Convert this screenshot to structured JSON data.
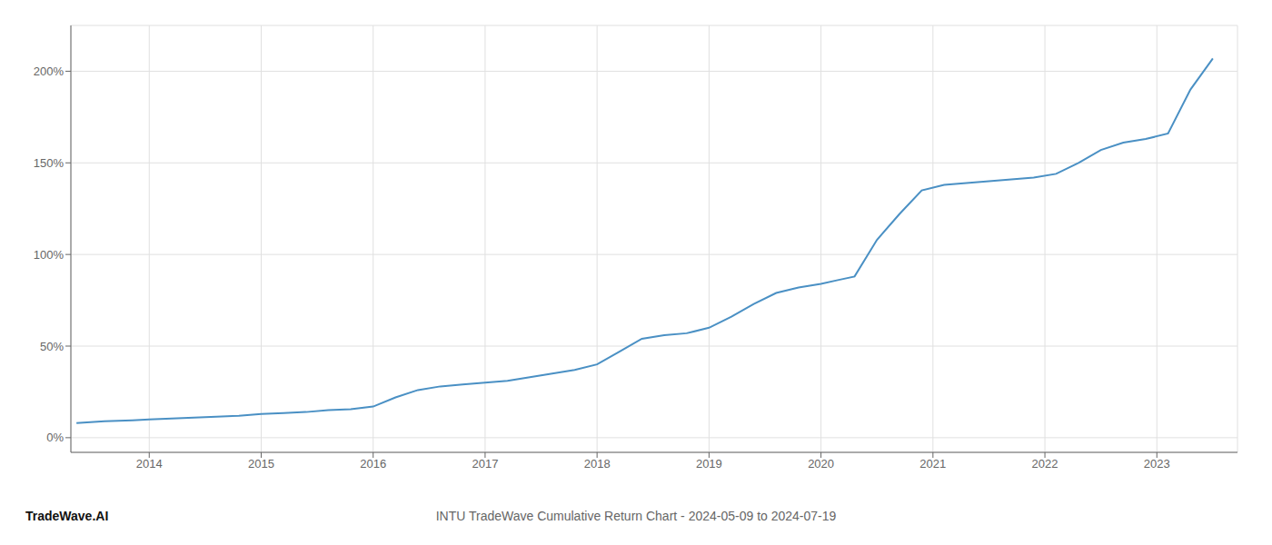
{
  "chart_data": {
    "type": "line",
    "title": "INTU TradeWave Cumulative Return Chart - 2024-05-09 to 2024-07-19",
    "annotations": [
      "TradeWave.AI"
    ],
    "x": [
      2013.35,
      2013.6,
      2013.85,
      2014.0,
      2014.2,
      2014.4,
      2014.6,
      2014.8,
      2015.0,
      2015.2,
      2015.4,
      2015.6,
      2015.8,
      2016.0,
      2016.2,
      2016.4,
      2016.6,
      2016.8,
      2017.0,
      2017.2,
      2017.4,
      2017.6,
      2017.8,
      2018.0,
      2018.2,
      2018.4,
      2018.6,
      2018.8,
      2019.0,
      2019.2,
      2019.4,
      2019.6,
      2019.8,
      2020.0,
      2020.15,
      2020.3,
      2020.5,
      2020.7,
      2020.9,
      2021.1,
      2021.3,
      2021.5,
      2021.7,
      2021.9,
      2022.1,
      2022.3,
      2022.5,
      2022.7,
      2022.9,
      2023.1,
      2023.3,
      2023.5
    ],
    "values": [
      8,
      9,
      9.5,
      10,
      10.5,
      11,
      11.5,
      12,
      13,
      13.5,
      14,
      15,
      15.5,
      17,
      22,
      26,
      28,
      29,
      30,
      31,
      33,
      35,
      37,
      40,
      47,
      54,
      56,
      57,
      60,
      66,
      73,
      79,
      82,
      84,
      86,
      88,
      108,
      122,
      135,
      138,
      139,
      140,
      141,
      142,
      144,
      150,
      157,
      161,
      163,
      166,
      190,
      207
    ],
    "color": "#4a90c4",
    "xlim": [
      2013.3,
      2023.72
    ],
    "xticks": [
      2014,
      2015,
      2016,
      2017,
      2018,
      2019,
      2020,
      2021,
      2022,
      2023
    ],
    "ylim": [
      -8,
      225
    ],
    "yticks": [
      {
        "value": 0,
        "label": "0%"
      },
      {
        "value": 50,
        "label": "50%"
      },
      {
        "value": 100,
        "label": "100%"
      },
      {
        "value": 150,
        "label": "150%"
      },
      {
        "value": 200,
        "label": "200%"
      }
    ],
    "grid": true
  }
}
